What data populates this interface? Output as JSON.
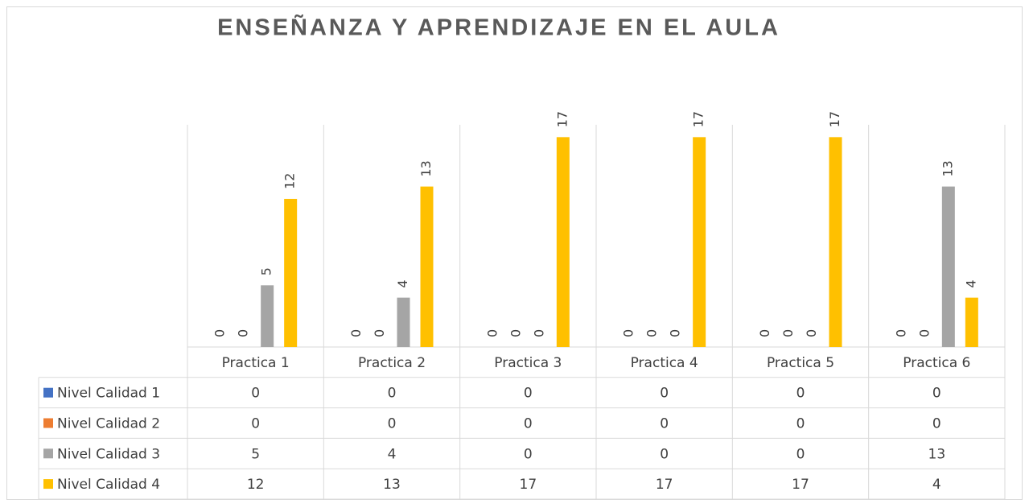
{
  "chart_data": {
    "type": "bar",
    "title": "ENSEÑANZA Y APRENDIZAJE EN EL AULA",
    "categories": [
      "Practica 1",
      "Practica 2",
      "Practica 3",
      "Practica 4",
      "Practica 5",
      "Practica 6"
    ],
    "series": [
      {
        "name": "Nivel Calidad 1",
        "color": "#4472c4",
        "values": [
          0,
          0,
          0,
          0,
          0,
          0
        ]
      },
      {
        "name": "Nivel Calidad 2",
        "color": "#ed7d31",
        "values": [
          0,
          0,
          0,
          0,
          0,
          0
        ]
      },
      {
        "name": "Nivel Calidad 3",
        "color": "#a5a5a5",
        "values": [
          5,
          4,
          0,
          0,
          0,
          13
        ]
      },
      {
        "name": "Nivel Calidad 4",
        "color": "#ffc000",
        "values": [
          12,
          13,
          17,
          17,
          17,
          4
        ]
      }
    ],
    "ylim": [
      0,
      18
    ],
    "data_labels": true,
    "data_table": true
  }
}
